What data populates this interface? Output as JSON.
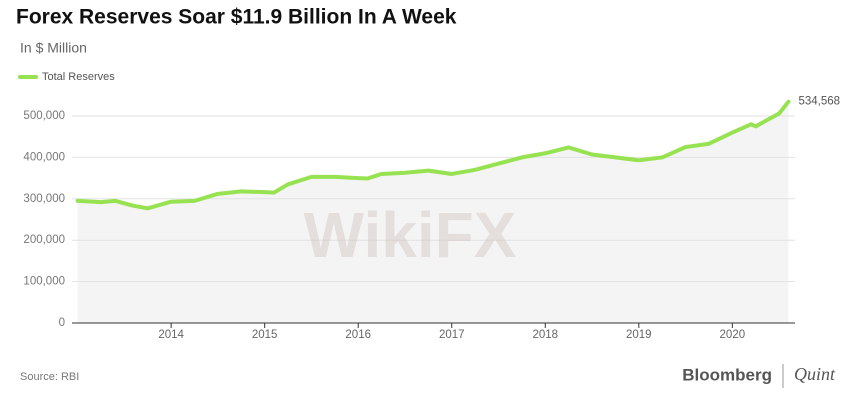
{
  "chart_data": {
    "type": "line",
    "title": "Forex Reserves Soar $11.9 Billion In A Week",
    "subtitle": "In $ Million",
    "source": "Source: RBI",
    "brand": [
      "Bloomberg",
      "Quint"
    ],
    "watermark": "WikiFX",
    "x": [
      2013.0,
      2013.25,
      2013.4,
      2013.6,
      2013.75,
      2014.0,
      2014.25,
      2014.5,
      2014.75,
      2015.0,
      2015.1,
      2015.25,
      2015.5,
      2015.75,
      2016.0,
      2016.1,
      2016.25,
      2016.5,
      2016.75,
      2017.0,
      2017.25,
      2017.5,
      2017.75,
      2018.0,
      2018.25,
      2018.5,
      2018.75,
      2019.0,
      2019.25,
      2019.5,
      2019.75,
      2020.0,
      2020.2,
      2020.25,
      2020.5,
      2020.6
    ],
    "series": [
      {
        "name": "Total Reserves",
        "color": "#97e251",
        "values": [
          295000,
          292000,
          295000,
          283000,
          277000,
          293000,
          295000,
          312000,
          318000,
          316000,
          315000,
          335000,
          353000,
          353000,
          350000,
          349000,
          360000,
          363000,
          368000,
          360000,
          370000,
          385000,
          400000,
          410000,
          424000,
          407000,
          400000,
          393000,
          400000,
          425000,
          433000,
          460000,
          480000,
          475000,
          506000,
          534568
        ],
        "value_labels": [
          null,
          null,
          null,
          null,
          null,
          null,
          null,
          null,
          null,
          null,
          null,
          null,
          null,
          null,
          null,
          null,
          null,
          null,
          null,
          null,
          null,
          null,
          null,
          null,
          null,
          null,
          null,
          null,
          null,
          null,
          null,
          null,
          null,
          null,
          null,
          "534,568"
        ]
      }
    ],
    "xlim": [
      2012.94,
      2020.67
    ],
    "xticks": [
      2014,
      2015,
      2016,
      2017,
      2018,
      2019,
      2020
    ],
    "ylim": [
      0,
      500000
    ],
    "yticks": [
      0,
      {
        "value": 100000,
        "label": "100,000"
      },
      {
        "value": 200000,
        "label": "200,000"
      },
      {
        "value": 300000,
        "label": "300,000"
      },
      {
        "value": 400000,
        "label": "400,000"
      },
      {
        "value": 500000,
        "label": "500,000"
      }
    ],
    "grid": true,
    "area_fill": "#f4f4f4"
  }
}
